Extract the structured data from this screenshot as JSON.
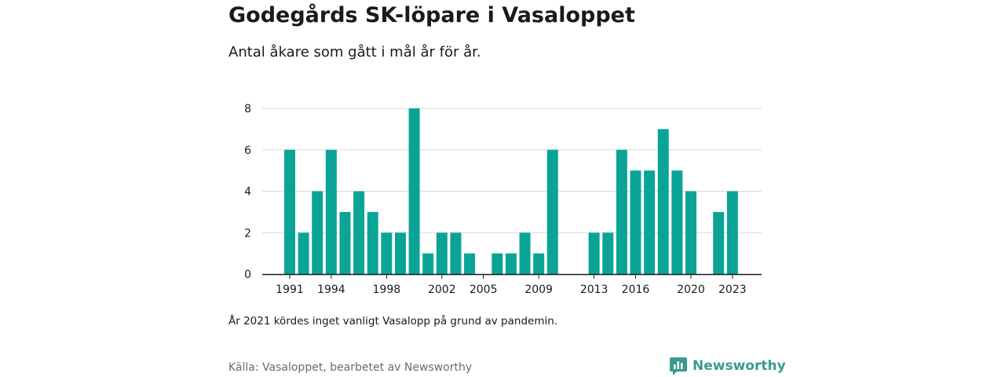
{
  "header": {
    "title": "Godegårds SK-löpare i Vasaloppet",
    "subtitle": "Antal åkare som gått i mål år för år."
  },
  "footer": {
    "note": "År 2021 kördes inget vanligt Vasalopp på grund av pandemin.",
    "source": "Källa: Vasaloppet, bearbetet av Newsworthy",
    "brand": "Newsworthy"
  },
  "colors": {
    "bar": "#0aa497",
    "grid": "#d9d9d9",
    "axis": "#1a1a1a",
    "brand": "#3a9a90"
  },
  "icons": {
    "brand_logo": "newsworthy-logo-icon"
  },
  "chart_data": {
    "type": "bar",
    "title": "Godegårds SK-löpare i Vasaloppet",
    "subtitle": "Antal åkare som gått i mål år för år.",
    "xlabel": "",
    "ylabel": "",
    "x": [
      1991,
      1992,
      1993,
      1994,
      1995,
      1996,
      1997,
      1998,
      1999,
      2000,
      2001,
      2002,
      2003,
      2004,
      2005,
      2006,
      2007,
      2008,
      2009,
      2010,
      2011,
      2012,
      2013,
      2014,
      2015,
      2016,
      2017,
      2018,
      2019,
      2020,
      2021,
      2022,
      2023
    ],
    "values": [
      6,
      2,
      4,
      6,
      3,
      4,
      3,
      2,
      2,
      8,
      1,
      2,
      2,
      1,
      0,
      1,
      1,
      2,
      1,
      6,
      0,
      0,
      2,
      2,
      6,
      5,
      5,
      7,
      5,
      4,
      0,
      3,
      4
    ],
    "x_ticks": [
      1991,
      1994,
      1998,
      2002,
      2005,
      2009,
      2013,
      2016,
      2020,
      2023
    ],
    "y_ticks": [
      0,
      2,
      4,
      6,
      8
    ],
    "ylim": [
      0,
      8
    ],
    "grid": true,
    "legend": "none"
  }
}
